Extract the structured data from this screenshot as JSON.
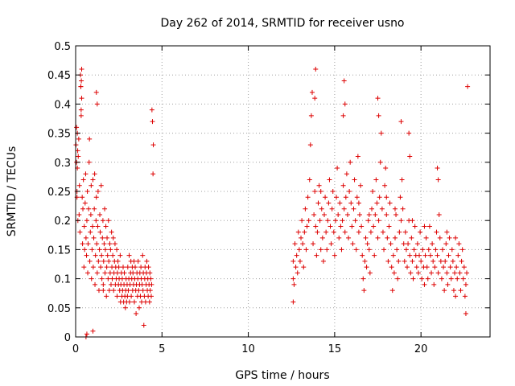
{
  "chart_data": {
    "type": "scatter",
    "title": "Day 262 of 2014, SRMTID for receiver usno",
    "xlabel": "GPS time / hours",
    "ylabel": "SRMTID / TECUs",
    "xlim": [
      0,
      24
    ],
    "ylim": [
      0,
      0.5
    ],
    "grid": true,
    "marker": "+",
    "color": "#dd0000",
    "x_ticks": [
      0,
      5,
      10,
      15,
      20
    ],
    "x_tick_labels": [
      "0",
      "5",
      "10",
      "15",
      "20"
    ],
    "y_ticks": [
      0,
      0.05,
      0.1,
      0.15,
      0.2,
      0.25,
      0.3,
      0.35,
      0.4,
      0.45,
      0.5
    ],
    "y_tick_labels": [
      "0",
      "0.05",
      "0.1",
      "0.15",
      "0.2",
      "0.25",
      "0.3",
      "0.35",
      "0.4",
      "0.45",
      "0.5"
    ],
    "series": [
      {
        "name": "SRMTID",
        "x": [
          0.02,
          0.05,
          0.08,
          0.1,
          0.13,
          0.15,
          0.18,
          0.2,
          0.22,
          0.25,
          0.28,
          0.3,
          0.32,
          0.35,
          0.38,
          0.4,
          0.42,
          0.45,
          0.48,
          0.5,
          0.52,
          0.55,
          0.58,
          0.6,
          0.63,
          0.65,
          0.68,
          0.7,
          0.72,
          0.75,
          0.78,
          0.8,
          0.82,
          0.85,
          0.88,
          0.9,
          0.92,
          0.95,
          0.98,
          1.0,
          1.02,
          1.05,
          1.08,
          1.1,
          1.12,
          1.15,
          1.18,
          1.2,
          1.22,
          1.25,
          1.28,
          1.3,
          1.32,
          1.35,
          1.38,
          1.4,
          1.42,
          1.45,
          1.48,
          1.5,
          1.52,
          1.55,
          1.58,
          1.6,
          1.62,
          1.65,
          1.68,
          1.7,
          1.72,
          1.75,
          1.78,
          1.8,
          1.82,
          1.85,
          1.88,
          1.9,
          1.92,
          1.95,
          1.98,
          2.0,
          2.02,
          2.05,
          2.08,
          2.1,
          2.12,
          2.15,
          2.18,
          2.2,
          2.22,
          2.25,
          2.28,
          2.3,
          2.32,
          2.35,
          2.38,
          2.4,
          2.42,
          2.45,
          2.48,
          2.5,
          2.52,
          2.55,
          2.58,
          2.6,
          2.62,
          2.65,
          2.68,
          2.7,
          2.72,
          2.75,
          2.78,
          2.8,
          2.82,
          2.85,
          2.88,
          2.9,
          2.92,
          2.95,
          2.98,
          3.0,
          3.02,
          3.05,
          3.08,
          3.1,
          3.12,
          3.15,
          3.18,
          3.2,
          3.22,
          3.25,
          3.28,
          3.3,
          3.32,
          3.35,
          3.38,
          3.4,
          3.42,
          3.45,
          3.48,
          3.5,
          3.52,
          3.55,
          3.58,
          3.6,
          3.62,
          3.65,
          3.68,
          3.7,
          3.72,
          3.75,
          3.78,
          3.8,
          3.82,
          3.85,
          3.88,
          3.9,
          3.92,
          3.95,
          3.98,
          4.0,
          4.02,
          4.05,
          4.08,
          4.1,
          4.12,
          4.15,
          4.18,
          4.2,
          4.22,
          4.25,
          4.28,
          4.3,
          4.32,
          4.35,
          4.38,
          4.4,
          4.42,
          4.45,
          4.48,
          4.5,
          0.3,
          0.32,
          0.35,
          0.33,
          1.2,
          1.25,
          0.1,
          0.12,
          0.05,
          0.08,
          0.6,
          0.65,
          1.0,
          1.6,
          12.6,
          12.6,
          12.6,
          12.65,
          12.7,
          12.75,
          12.8,
          12.85,
          12.9,
          12.95,
          13.0,
          13.05,
          13.1,
          13.15,
          13.2,
          13.25,
          13.3,
          13.35,
          13.4,
          13.45,
          13.5,
          13.55,
          13.6,
          13.65,
          13.7,
          13.75,
          13.8,
          13.85,
          13.9,
          13.95,
          14.0,
          14.05,
          14.1,
          14.15,
          14.2,
          14.25,
          14.3,
          14.35,
          14.4,
          14.45,
          14.5,
          14.55,
          14.6,
          14.65,
          14.7,
          14.75,
          14.8,
          14.85,
          14.9,
          14.95,
          15.0,
          15.05,
          15.1,
          15.15,
          15.2,
          15.25,
          15.3,
          15.35,
          15.4,
          15.45,
          15.5,
          15.55,
          15.6,
          15.65,
          15.7,
          15.75,
          15.8,
          15.85,
          15.9,
          15.95,
          16.0,
          16.05,
          16.1,
          16.15,
          16.2,
          16.25,
          16.3,
          16.35,
          16.4,
          16.45,
          16.5,
          16.55,
          16.6,
          16.65,
          16.7,
          16.75,
          16.8,
          16.85,
          16.9,
          16.95,
          17.0,
          17.05,
          17.1,
          17.15,
          17.2,
          17.25,
          17.3,
          17.35,
          17.4,
          17.45,
          17.5,
          17.55,
          17.6,
          17.65,
          17.7,
          17.75,
          17.8,
          17.85,
          17.9,
          17.95,
          18.0,
          18.05,
          18.1,
          18.15,
          18.2,
          18.25,
          18.3,
          18.35,
          18.4,
          18.45,
          18.5,
          18.55,
          18.6,
          18.65,
          18.7,
          18.75,
          18.8,
          18.85,
          18.9,
          18.95,
          19.0,
          19.05,
          19.1,
          19.15,
          19.2,
          19.25,
          19.3,
          19.35,
          19.4,
          19.45,
          19.5,
          19.55,
          19.6,
          19.65,
          19.7,
          19.75,
          19.8,
          19.85,
          19.9,
          19.95,
          20.0,
          20.05,
          20.1,
          20.15,
          20.2,
          20.25,
          20.3,
          20.35,
          20.4,
          20.45,
          20.5,
          20.55,
          20.6,
          20.65,
          20.7,
          20.75,
          20.8,
          20.85,
          20.9,
          20.95,
          21.0,
          21.05,
          21.1,
          21.15,
          21.2,
          21.25,
          21.3,
          21.35,
          21.4,
          21.45,
          21.5,
          21.55,
          21.6,
          21.65,
          21.7,
          21.75,
          21.8,
          21.85,
          21.9,
          21.95,
          22.0,
          22.05,
          22.1,
          22.15,
          22.2,
          22.25,
          22.3,
          22.35,
          22.4,
          22.45,
          22.5,
          22.55,
          22.6,
          22.65,
          22.7,
          13.85,
          13.9,
          15.55,
          15.6,
          15.5,
          17.5,
          17.55,
          18.85,
          19.3,
          19.35,
          20.95,
          21.0,
          14.2,
          16.4,
          17.0,
          18.0,
          18.5,
          19.5,
          20.2,
          21.5,
          22.0,
          22.6
        ],
        "y": [
          0.33,
          0.36,
          0.25,
          0.29,
          0.2,
          0.31,
          0.34,
          0.21,
          0.26,
          0.18,
          0.45,
          0.43,
          0.38,
          0.41,
          0.24,
          0.16,
          0.22,
          0.27,
          0.12,
          0.19,
          0.15,
          0.23,
          0.28,
          0.17,
          0.14,
          0.2,
          0.25,
          0.11,
          0.16,
          0.22,
          0.3,
          0.34,
          0.13,
          0.18,
          0.21,
          0.26,
          0.1,
          0.15,
          0.19,
          0.27,
          0.12,
          0.17,
          0.22,
          0.28,
          0.09,
          0.14,
          0.2,
          0.24,
          0.16,
          0.11,
          0.19,
          0.25,
          0.13,
          0.08,
          0.15,
          0.21,
          0.18,
          0.12,
          0.26,
          0.14,
          0.1,
          0.17,
          0.2,
          0.09,
          0.13,
          0.16,
          0.22,
          0.11,
          0.15,
          0.19,
          0.07,
          0.12,
          0.17,
          0.14,
          0.1,
          0.2,
          0.13,
          0.08,
          0.16,
          0.11,
          0.15,
          0.09,
          0.18,
          0.12,
          0.1,
          0.14,
          0.17,
          0.08,
          0.11,
          0.13,
          0.16,
          0.09,
          0.12,
          0.1,
          0.15,
          0.07,
          0.11,
          0.13,
          0.09,
          0.12,
          0.1,
          0.08,
          0.14,
          0.06,
          0.09,
          0.11,
          0.07,
          0.1,
          0.08,
          0.12,
          0.06,
          0.09,
          0.11,
          0.07,
          0.05,
          0.08,
          0.1,
          0.06,
          0.09,
          0.07,
          0.12,
          0.08,
          0.1,
          0.14,
          0.06,
          0.09,
          0.11,
          0.13,
          0.07,
          0.1,
          0.12,
          0.08,
          0.11,
          0.09,
          0.13,
          0.06,
          0.1,
          0.12,
          0.08,
          0.04,
          0.09,
          0.11,
          0.07,
          0.1,
          0.13,
          0.08,
          0.05,
          0.09,
          0.11,
          0.07,
          0.12,
          0.1,
          0.06,
          0.09,
          0.14,
          0.08,
          0.11,
          0.02,
          0.07,
          0.1,
          0.12,
          0.06,
          0.09,
          0.11,
          0.13,
          0.08,
          0.1,
          0.07,
          0.12,
          0.09,
          0.06,
          0.11,
          0.08,
          0.1,
          0.07,
          0.09,
          0.39,
          0.37,
          0.28,
          0.33,
          0.43,
          0.39,
          0.46,
          0.44,
          0.42,
          0.4,
          0.35,
          0.32,
          0.3,
          0.24,
          0.0,
          0.005,
          0.01,
          0.08,
          0.06,
          0.1,
          0.13,
          0.09,
          0.16,
          0.12,
          0.14,
          0.11,
          0.18,
          0.15,
          0.13,
          0.17,
          0.2,
          0.16,
          0.12,
          0.18,
          0.22,
          0.15,
          0.19,
          0.24,
          0.2,
          0.27,
          0.33,
          0.38,
          0.42,
          0.16,
          0.21,
          0.25,
          0.19,
          0.14,
          0.18,
          0.23,
          0.26,
          0.2,
          0.15,
          0.22,
          0.17,
          0.13,
          0.21,
          0.24,
          0.18,
          0.15,
          0.2,
          0.23,
          0.27,
          0.19,
          0.16,
          0.22,
          0.25,
          0.18,
          0.14,
          0.2,
          0.24,
          0.29,
          0.21,
          0.17,
          0.23,
          0.19,
          0.15,
          0.2,
          0.26,
          0.22,
          0.18,
          0.24,
          0.28,
          0.21,
          0.17,
          0.25,
          0.3,
          0.23,
          0.19,
          0.16,
          0.22,
          0.27,
          0.2,
          0.15,
          0.24,
          0.31,
          0.18,
          0.21,
          0.26,
          0.19,
          0.14,
          0.1,
          0.08,
          0.13,
          0.17,
          0.12,
          0.16,
          0.2,
          0.15,
          0.11,
          0.18,
          0.22,
          0.25,
          0.19,
          0.14,
          0.21,
          0.27,
          0.23,
          0.17,
          0.2,
          0.24,
          0.3,
          0.35,
          0.22,
          0.18,
          0.15,
          0.26,
          0.29,
          0.21,
          0.17,
          0.13,
          0.19,
          0.23,
          0.16,
          0.12,
          0.08,
          0.14,
          0.11,
          0.17,
          0.21,
          0.15,
          0.1,
          0.13,
          0.18,
          0.24,
          0.2,
          0.27,
          0.22,
          0.16,
          0.13,
          0.18,
          0.15,
          0.12,
          0.16,
          0.2,
          0.14,
          0.11,
          0.17,
          0.13,
          0.1,
          0.15,
          0.19,
          0.14,
          0.12,
          0.16,
          0.11,
          0.14,
          0.18,
          0.13,
          0.1,
          0.15,
          0.12,
          0.09,
          0.14,
          0.17,
          0.12,
          0.1,
          0.15,
          0.19,
          0.14,
          0.11,
          0.16,
          0.13,
          0.09,
          0.12,
          0.15,
          0.18,
          0.14,
          0.11,
          0.21,
          0.17,
          0.13,
          0.1,
          0.15,
          0.12,
          0.08,
          0.13,
          0.16,
          0.11,
          0.09,
          0.14,
          0.17,
          0.12,
          0.1,
          0.15,
          0.13,
          0.08,
          0.11,
          0.07,
          0.12,
          0.1,
          0.14,
          0.16,
          0.11,
          0.08,
          0.13,
          0.15,
          0.1,
          0.12,
          0.07,
          0.09,
          0.11,
          0.43,
          0.41,
          0.46,
          0.44,
          0.4,
          0.38,
          0.41,
          0.38,
          0.37,
          0.35,
          0.31,
          0.29,
          0.27,
          0.25,
          0.23,
          0.21,
          0.24,
          0.22,
          0.2,
          0.19,
          0.18,
          0.17,
          0.04
        ]
      }
    ]
  }
}
